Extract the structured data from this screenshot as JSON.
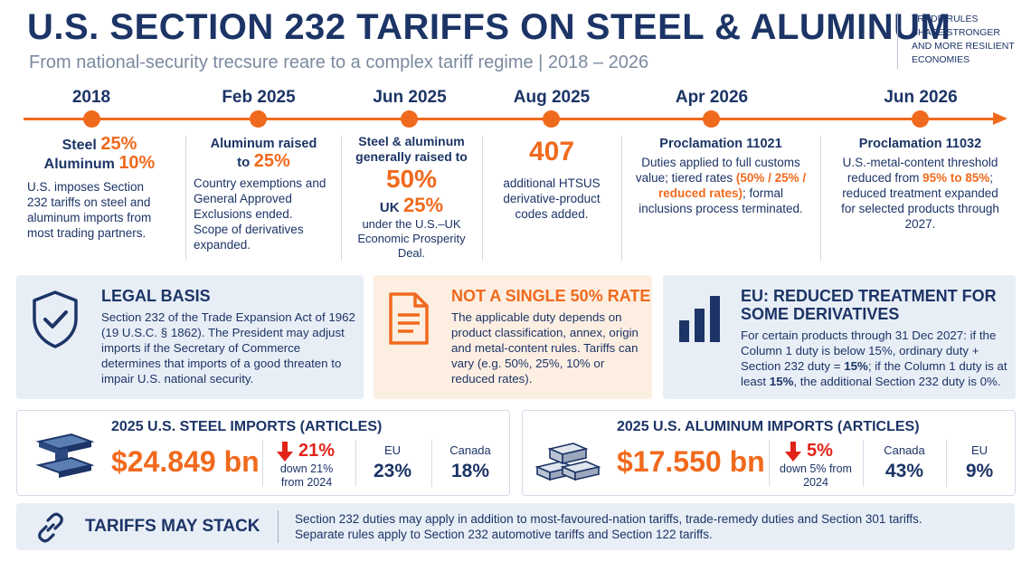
{
  "header": {
    "title": "U.S. SECTION 232 TARIFFS ON STEEL & ALUMINUM",
    "subtitle": "From national-security trecsure reare to a complex tariff regime  |  2018 – 2026",
    "corner_lines": [
      "TRADE RULES",
      "SHAPE STRONGER",
      "AND MORE RESILIENT",
      "ECONOMIES"
    ]
  },
  "timeline": [
    {
      "date": "2018",
      "line1_label": "Steel",
      "line1_value": "25%",
      "line2_label": "Aluminum",
      "line2_value": "10%",
      "desc": "U.S. imposes Section 232 tariffs on steel and aluminum imports from most trading partners."
    },
    {
      "date": "Feb 2025",
      "label1": "Aluminum raised",
      "label2": "to",
      "value": "25%",
      "desc": "Country exemptions and General Approved Exclusions ended. Scope of derivatives expanded."
    },
    {
      "date": "Jun 2025",
      "label": "Steel & aluminum generally raised to",
      "value": "50%",
      "uk_label": "UK",
      "uk_value": "25%",
      "desc": "under the U.S.–UK Economic Prosperity Deal."
    },
    {
      "date": "Aug 2025",
      "value": "407",
      "desc": "additional HTSUS derivative-product codes added."
    },
    {
      "date": "Apr 2026",
      "title": "Proclamation 11021",
      "desc_a": "Duties applied to full customs value; tiered rates ",
      "desc_highlight": "(50% / 25% / reduced rates)",
      "desc_b": "; formal inclusions process terminated."
    },
    {
      "date": "Jun 2026",
      "title": "Proclamation 11032",
      "desc_a": "U.S.-metal-content threshold reduced from ",
      "desc_highlight": "95% to 85%",
      "desc_b": "; reduced treatment expanded for selected products through 2027."
    }
  ],
  "panels": {
    "legal": {
      "icon": "shield-check-icon",
      "title": "LEGAL BASIS",
      "text": "Section 232 of the Trade Expansion Act of 1962 (19 U.S.C. § 1862). The President may adjust imports if the Secretary of Commerce determines that imports of a good threaten to impair U.S. national security."
    },
    "rate": {
      "icon": "document-icon",
      "title": "NOT A SINGLE 50% RATE",
      "text": "The applicable duty depends on product classification, annex, origin and metal-content rules. Tariffs can vary (e.g. 50%, 25%, 10% or reduced rates)."
    },
    "eu": {
      "icon": "bar-chart-icon",
      "title": "EU: REDUCED TREATMENT FOR SOME DERIVATIVES",
      "text_a": "For certain products through 31 Dec 2027: if the Column 1 duty is below 15%, ordinary duty + Section 232 duty = ",
      "bold1": "15%",
      "text_b": "; if the Column 1 duty is at least ",
      "bold2": "15%",
      "text_c": ", the additional Section 232 duty is 0%."
    }
  },
  "stats": {
    "steel": {
      "title": "2025 U.S. STEEL IMPORTS (ARTICLES)",
      "value": "$24.849 bn",
      "change": "21%",
      "change_sub": "down 21% from 2024",
      "region1": "EU",
      "share1": "23%",
      "region2": "Canada",
      "share2": "18%"
    },
    "aluminum": {
      "title": "2025 U.S. ALUMINUM IMPORTS (ARTICLES)",
      "value": "$17.550 bn",
      "change": "5%",
      "change_sub": "down 5% from 2024",
      "region1": "Canada",
      "share1": "43%",
      "region2": "EU",
      "share2": "9%"
    }
  },
  "footer": {
    "icon": "link-icon",
    "title": "TARIFFS MAY STACK",
    "line1": "Section 232 duties may apply in addition to most-favoured-nation tariffs, trade-remedy duties and Section 301 tariffs.",
    "line2": "Separate rules apply to Section 232 automotive tariffs and Section 122 tariffs."
  },
  "colors": {
    "navy": "#1c3466",
    "orange": "#f06a1d",
    "red": "#e2231a",
    "panel_blue": "#e8eef6",
    "panel_orange": "#fdeee2"
  }
}
